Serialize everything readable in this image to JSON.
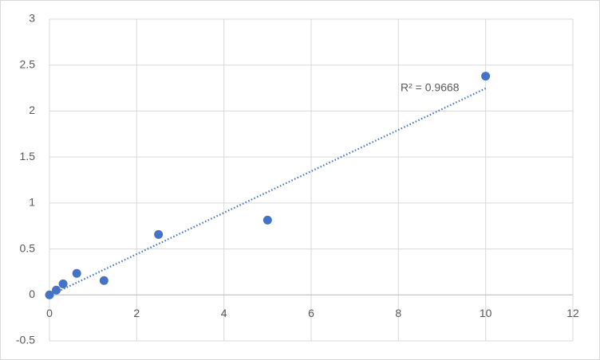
{
  "chart_data": {
    "type": "scatter",
    "x": [
      0,
      0.156,
      0.3125,
      0.625,
      1.25,
      2.5,
      5,
      10
    ],
    "values": [
      0,
      0.052,
      0.12,
      0.234,
      0.156,
      0.658,
      0.814,
      2.38
    ],
    "color": "#4472c4",
    "trendline": "linear",
    "annotation": "R² = 0.9668",
    "xlim": [
      0,
      12
    ],
    "xticks": [
      0,
      2,
      4,
      6,
      8,
      10,
      12
    ],
    "ylim": [
      -0.5,
      3
    ],
    "yticks": [
      -0.5,
      0,
      0.5,
      1,
      1.5,
      2,
      2.5,
      3
    ],
    "grid": true
  }
}
